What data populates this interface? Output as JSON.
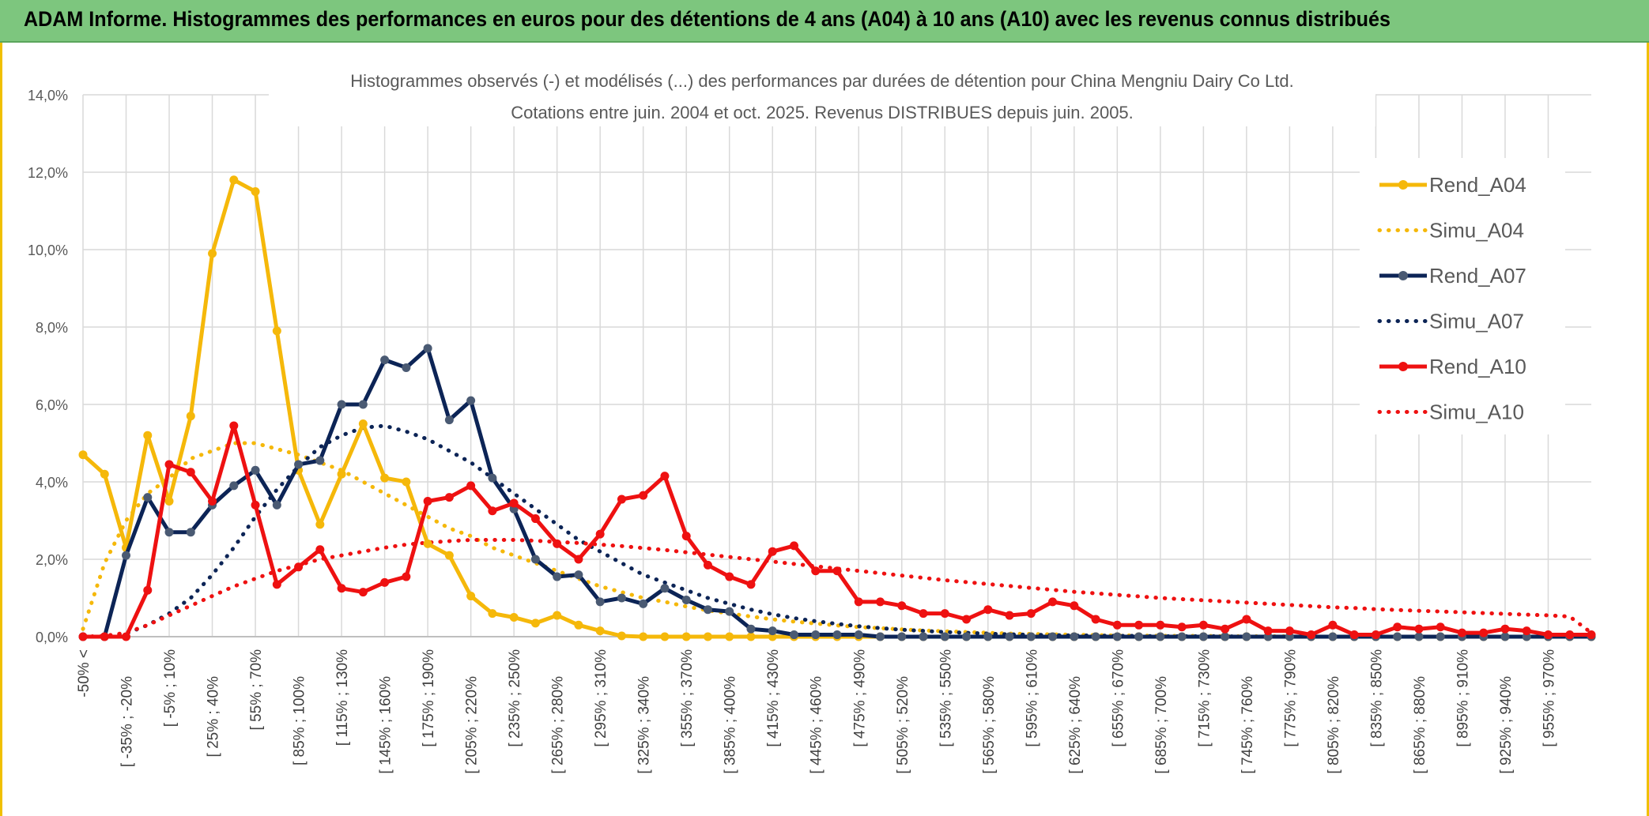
{
  "header": {
    "banner": "ADAM Informe. Histogrammes des performances en euros pour des détentions de 4 ans (A04) à 10 ans (A10) avec les revenus connus distribués"
  },
  "colors": {
    "a04": "#f5b80a",
    "a07": "#0c2456",
    "a10": "#ee1111",
    "grid": "#d9d9d9",
    "banner": "#7dc67e"
  },
  "chart_data": {
    "type": "line",
    "title": "Histogrammes observés (-) et modélisés (...) des performances par durées de détention pour China Mengniu Dairy Co Ltd.",
    "subtitle": "Cotations entre juin. 2004 et oct. 2025. Revenus DISTRIBUES depuis juin. 2005.",
    "xlabel": "",
    "ylabel": "",
    "ylim": [
      0,
      14
    ],
    "y_ticks": [
      "0,0%",
      "2,0%",
      "4,0%",
      "6,0%",
      "8,0%",
      "10,0%",
      "12,0%",
      "14,0%"
    ],
    "legend_position": "right",
    "x_tick_labels": [
      "-50% <",
      "[ -35% ; -20%",
      "[ -5% ; 10%",
      "[ 25% ; 40%",
      "[ 55% ; 70%",
      "[ 85% ; 100%",
      "[ 115% ; 130%",
      "[ 145% ; 160%",
      "[ 175% ; 190%",
      "[ 205% ; 220%",
      "[ 235% ; 250%",
      "[ 265% ; 280%",
      "[ 295% ; 310%",
      "[ 325% ; 340%",
      "[ 355% ; 370%",
      "[ 385% ; 400%",
      "[ 415% ; 430%",
      "[ 445% ; 460%",
      "[ 475% ; 490%",
      "[ 505% ; 520%",
      "[ 535% ; 550%",
      "[ 565% ; 580%",
      "[ 595% ; 610%",
      "[ 625% ; 640%",
      "[ 655% ; 670%",
      "[ 685% ; 700%",
      "[ 715% ; 730%",
      "[ 745% ; 760%",
      "[ 775% ; 790%",
      "[ 805% ; 820%",
      "[ 835% ; 850%",
      "[ 865% ; 880%",
      "[ 895% ; 910%",
      "[ 925% ; 940%",
      "[ 955% ; 970%"
    ],
    "n_points": 71,
    "series": [
      {
        "name": "Rend_A04",
        "style": "solid",
        "color": "#f5b80a",
        "values": [
          4.7,
          4.2,
          2.3,
          5.2,
          3.5,
          5.7,
          9.9,
          11.8,
          11.5,
          7.9,
          4.3,
          2.9,
          4.2,
          5.5,
          4.1,
          4.0,
          2.4,
          2.1,
          1.05,
          0.6,
          0.5,
          0.35,
          0.55,
          0.3,
          0.15,
          0.02,
          0,
          0,
          0,
          0,
          0,
          0,
          0,
          0,
          0,
          0,
          0,
          0,
          0,
          0,
          0,
          0,
          0,
          0,
          0,
          0,
          0,
          0,
          0,
          0,
          0,
          0,
          0,
          0,
          0,
          0,
          0,
          0,
          0,
          0,
          0,
          0,
          0,
          0,
          0,
          0,
          0,
          0,
          0,
          0,
          0
        ]
      },
      {
        "name": "Simu_A04",
        "style": "dotted",
        "color": "#f5b80a",
        "values": [
          0.2,
          1.9,
          3.0,
          3.7,
          4.1,
          4.6,
          4.8,
          5.0,
          5.0,
          4.85,
          4.7,
          4.5,
          4.3,
          4.0,
          3.7,
          3.4,
          3.1,
          2.8,
          2.6,
          2.3,
          2.1,
          1.9,
          1.7,
          1.5,
          1.3,
          1.15,
          1.0,
          0.9,
          0.78,
          0.68,
          0.6,
          0.52,
          0.45,
          0.39,
          0.34,
          0.29,
          0.25,
          0.22,
          0.19,
          0.16,
          0.14,
          0.12,
          0.1,
          0.08,
          0.07,
          0.06,
          0.05,
          0.04,
          0.03,
          0.03,
          0.02,
          0.02,
          0.02,
          0.01,
          0.01,
          0.01,
          0.01,
          0,
          0,
          0,
          0,
          0,
          0,
          0,
          0,
          0,
          0,
          0,
          0,
          0,
          0
        ]
      },
      {
        "name": "Rend_A07",
        "style": "solid",
        "color": "#0c2456",
        "values": [
          0,
          0,
          2.1,
          3.6,
          2.7,
          2.7,
          3.4,
          3.9,
          4.3,
          3.4,
          4.45,
          4.55,
          6.0,
          6.0,
          7.15,
          6.95,
          7.45,
          5.6,
          6.1,
          4.1,
          3.3,
          2.0,
          1.55,
          1.6,
          0.9,
          1.0,
          0.85,
          1.25,
          0.95,
          0.7,
          0.65,
          0.2,
          0.15,
          0.05,
          0.05,
          0.05,
          0.05,
          0,
          0,
          0,
          0,
          0,
          0,
          0,
          0,
          0,
          0,
          0,
          0,
          0,
          0,
          0,
          0,
          0,
          0,
          0,
          0,
          0,
          0,
          0,
          0,
          0,
          0,
          0,
          0,
          0,
          0,
          0,
          0,
          0,
          0
        ]
      },
      {
        "name": "Simu_A07",
        "style": "dotted",
        "color": "#0c2456",
        "values": [
          0,
          0,
          0.08,
          0.3,
          0.6,
          1.0,
          1.6,
          2.3,
          3.1,
          3.8,
          4.4,
          4.9,
          5.2,
          5.4,
          5.45,
          5.3,
          5.1,
          4.8,
          4.5,
          4.1,
          3.7,
          3.3,
          2.9,
          2.5,
          2.2,
          1.9,
          1.6,
          1.4,
          1.2,
          1.0,
          0.85,
          0.7,
          0.58,
          0.48,
          0.4,
          0.33,
          0.27,
          0.22,
          0.18,
          0.15,
          0.12,
          0.1,
          0.08,
          0.06,
          0.05,
          0.04,
          0.03,
          0.03,
          0.02,
          0.02,
          0.01,
          0.01,
          0.01,
          0.01,
          0,
          0,
          0,
          0,
          0,
          0,
          0,
          0,
          0,
          0,
          0,
          0,
          0,
          0,
          0,
          0,
          0
        ]
      },
      {
        "name": "Rend_A10",
        "style": "solid",
        "color": "#ee1111",
        "values": [
          0,
          0,
          0,
          1.2,
          4.45,
          4.25,
          3.5,
          5.45,
          3.4,
          1.35,
          1.8,
          2.25,
          1.25,
          1.15,
          1.4,
          1.55,
          3.5,
          3.6,
          3.9,
          3.25,
          3.45,
          3.05,
          2.4,
          2.0,
          2.65,
          3.55,
          3.65,
          4.15,
          2.6,
          1.85,
          1.55,
          1.35,
          2.2,
          2.35,
          1.7,
          1.7,
          0.9,
          0.9,
          0.8,
          0.6,
          0.6,
          0.45,
          0.7,
          0.55,
          0.6,
          0.9,
          0.8,
          0.45,
          0.3,
          0.3,
          0.3,
          0.25,
          0.3,
          0.2,
          0.45,
          0.15,
          0.15,
          0.05,
          0.3,
          0.05,
          0.05,
          0.25,
          0.2,
          0.25,
          0.1,
          0.1,
          0.2,
          0.15,
          0.05,
          0.05,
          0.05
        ]
      },
      {
        "name": "Simu_A10",
        "style": "dotted",
        "color": "#ee1111",
        "values": [
          0,
          0.02,
          0.1,
          0.3,
          0.55,
          0.8,
          1.05,
          1.3,
          1.5,
          1.7,
          1.85,
          2.0,
          2.1,
          2.2,
          2.3,
          2.38,
          2.43,
          2.47,
          2.5,
          2.5,
          2.5,
          2.48,
          2.45,
          2.42,
          2.38,
          2.34,
          2.29,
          2.24,
          2.18,
          2.12,
          2.06,
          2.0,
          1.94,
          1.88,
          1.82,
          1.76,
          1.7,
          1.64,
          1.58,
          1.52,
          1.46,
          1.41,
          1.36,
          1.31,
          1.26,
          1.21,
          1.16,
          1.12,
          1.08,
          1.04,
          1.0,
          0.97,
          0.94,
          0.91,
          0.88,
          0.85,
          0.82,
          0.79,
          0.76,
          0.74,
          0.71,
          0.69,
          0.67,
          0.65,
          0.63,
          0.61,
          0.59,
          0.57,
          0.55,
          0.52,
          0.1
        ]
      }
    ]
  }
}
